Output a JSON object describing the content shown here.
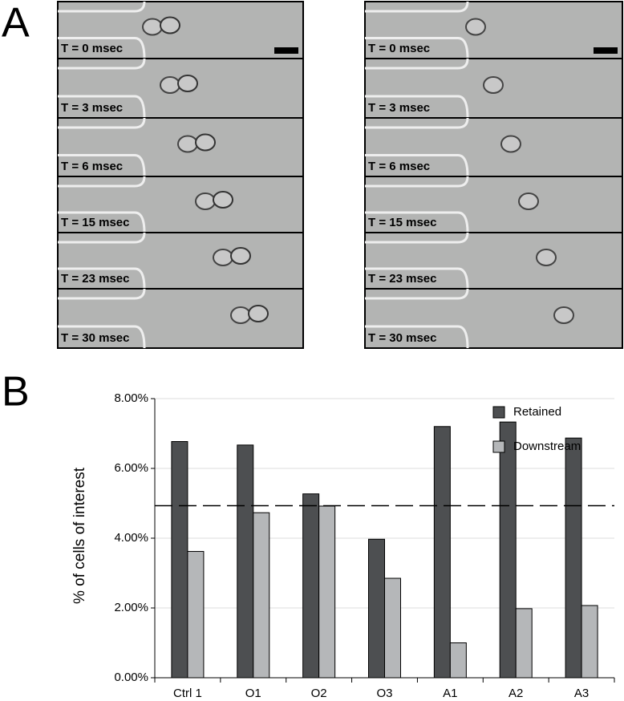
{
  "panel_labels": [
    "A",
    "B"
  ],
  "panel_a": {
    "left": {
      "frames": [
        "T = 0 msec",
        "T = 3 msec",
        "T = 6 msec",
        "T = 15 msec",
        "T = 23 msec",
        "T = 30 msec"
      ]
    },
    "right": {
      "frames": [
        "T = 0 msec",
        "T = 3 msec",
        "T = 6 msec",
        "T = 15 msec",
        "T = 23 msec",
        "T = 30 msec"
      ]
    }
  },
  "chart_data": {
    "type": "bar",
    "ylabel": "% of cells of interest",
    "categories": [
      "Ctrl 1",
      "O1",
      "O2",
      "O3",
      "A1",
      "A2",
      "A3"
    ],
    "series": [
      {
        "name": "Retained",
        "color": "#4d4f51",
        "values": [
          6.77,
          6.67,
          5.27,
          3.97,
          7.2,
          7.33,
          6.87
        ]
      },
      {
        "name": "Downstream",
        "color": "#b5b7b9",
        "values": [
          3.62,
          4.73,
          4.92,
          2.85,
          1.0,
          1.98,
          2.07
        ]
      }
    ],
    "ylim": [
      0,
      8
    ],
    "yticks": [
      {
        "value": 0,
        "label": "0.00%"
      },
      {
        "value": 2,
        "label": "2.00%"
      },
      {
        "value": 4,
        "label": "4.00%"
      },
      {
        "value": 6,
        "label": "6.00%"
      },
      {
        "value": 8,
        "label": "8.00%"
      }
    ],
    "reference_line": 4.93,
    "grid": true,
    "legend": "upper-right"
  }
}
